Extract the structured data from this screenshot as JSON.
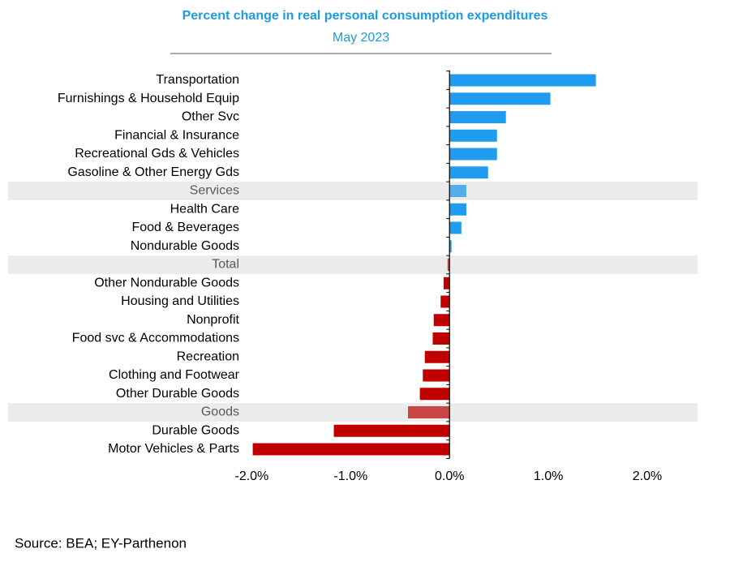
{
  "chart_data": {
    "type": "hbar",
    "title": "Percent change in real personal consumption expenditures",
    "subtitle": "May 2023",
    "source": "Source: BEA; EY-Parthenon",
    "categories": [
      "Transportation",
      "Furnishings & Household Equip",
      "Other Svc",
      "Financial & Insurance",
      "Recreational Gds & Vehicles",
      "Gasoline & Other Energy Gds",
      "Services",
      "Health Care",
      "Food & Beverages",
      "Nondurable Goods",
      "Total",
      "Other Nondurable Goods",
      "Housing and Utilities",
      "Nonprofit",
      "Food svc & Accommodations",
      "Recreation",
      "Clothing and Footwear",
      "Other Durable Goods",
      "Goods",
      "Durable Goods",
      "Motor Vehicles & Parts"
    ],
    "values": [
      1.48,
      1.02,
      0.57,
      0.48,
      0.48,
      0.39,
      0.17,
      0.17,
      0.12,
      0.02,
      -0.02,
      -0.06,
      -0.09,
      -0.16,
      -0.17,
      -0.25,
      -0.27,
      -0.3,
      -0.42,
      -1.17,
      -1.99
    ],
    "highlighted": [
      false,
      false,
      false,
      false,
      false,
      false,
      true,
      false,
      false,
      false,
      true,
      false,
      false,
      false,
      false,
      false,
      false,
      false,
      true,
      false,
      false
    ],
    "colors": [
      "#1f9bf0",
      "#1f9bf0",
      "#1f9bf0",
      "#1f9bf0",
      "#1f9bf0",
      "#1f9bf0",
      "#55aeea",
      "#1f9bf0",
      "#1f9bf0",
      "#1f9bf0",
      "#c84646",
      "#c00000",
      "#c00000",
      "#c00000",
      "#c00000",
      "#c00000",
      "#c00000",
      "#c00000",
      "#c84646",
      "#c00000",
      "#c00000"
    ],
    "xlim": [
      -2.2,
      2.5
    ],
    "xticks": [
      {
        "value": -2,
        "label": "-2.0%"
      },
      {
        "value": -1,
        "label": "-1.0%"
      },
      {
        "value": 0,
        "label": "0.0%"
      },
      {
        "value": 1,
        "label": "1.0%"
      },
      {
        "value": 2,
        "label": "2.0%"
      }
    ]
  }
}
